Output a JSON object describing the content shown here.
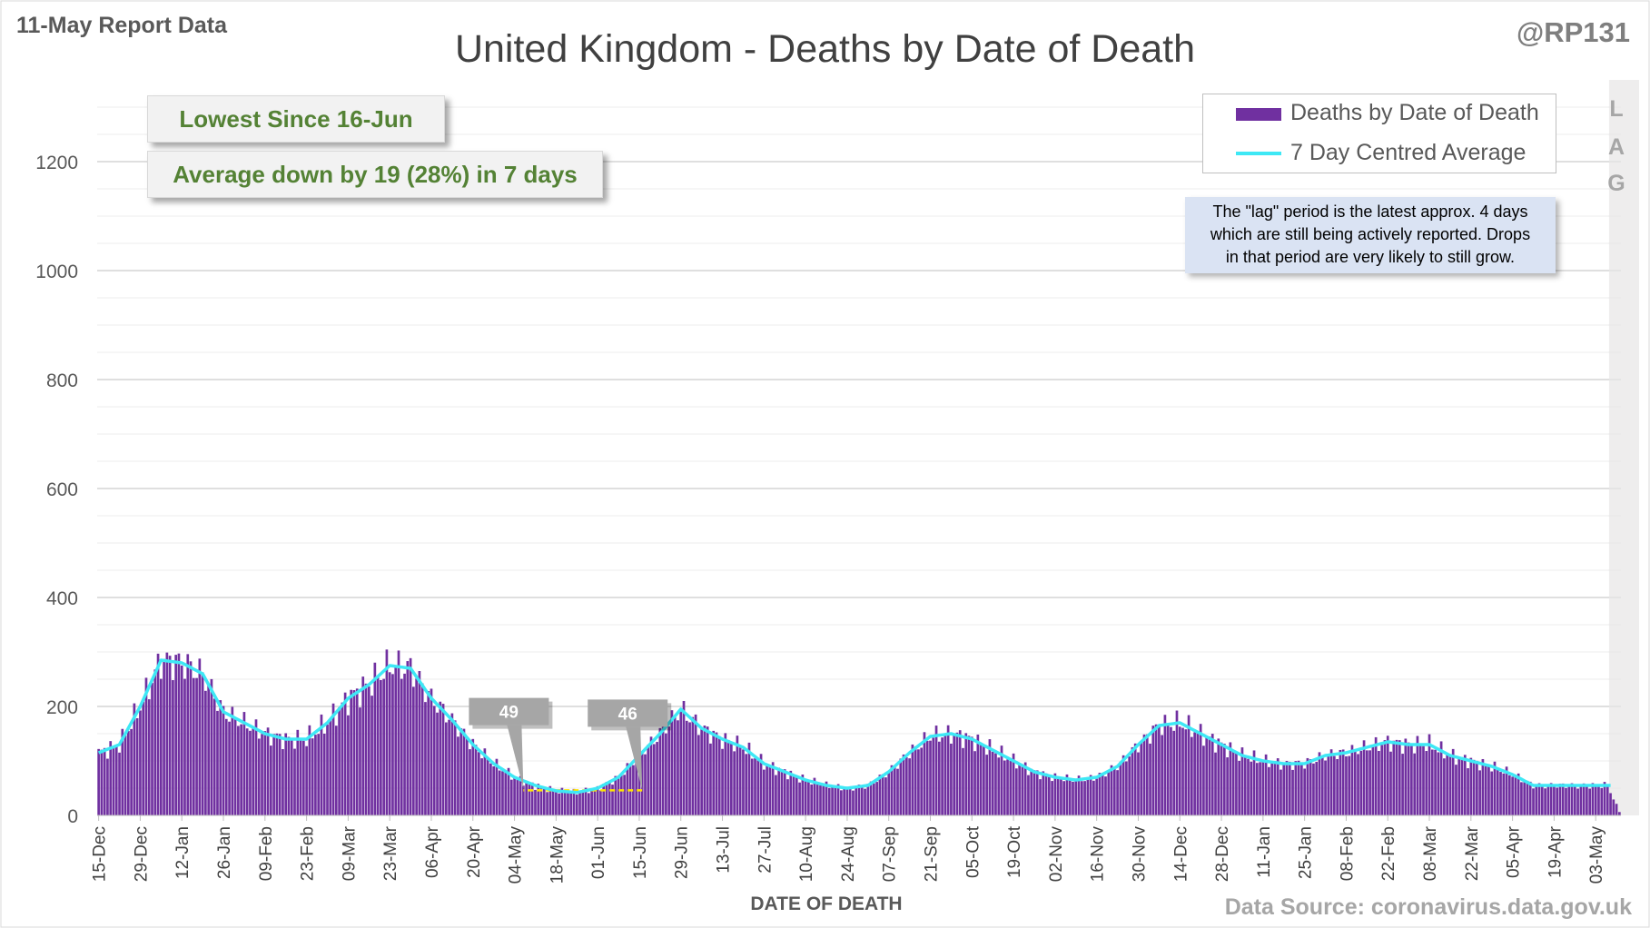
{
  "header": {
    "report_date": "11-May Report Data",
    "author": "@RP131"
  },
  "callouts": {
    "lowest": "Lowest Since 16-Jun",
    "average_change": "Average down by 19 (28%) in 7 days"
  },
  "legend": {
    "bars": "Deaths by Date of Death",
    "line": "7 Day Centred Average"
  },
  "lag": {
    "letters": [
      "L",
      "A",
      "G"
    ],
    "note_lines": [
      "The \"lag\" period is the latest approx. 4 days",
      "which are still being actively reported.  Drops",
      "in that period are very likely to still grow."
    ]
  },
  "footer": {
    "source": "Data Source: coronavirus.data.gov.uk"
  },
  "colors": {
    "bars": "#7030a0",
    "average_line": "#3ee8f5",
    "baseline": "#ffe600",
    "grid": "#d9d9d9",
    "marker": "#a6a6a6"
  },
  "chart_data": {
    "type": "bar",
    "title": "United Kingdom - Deaths by Date of Death",
    "xlabel": "DATE OF DEATH",
    "ylabel": "",
    "ylim": [
      0,
      1300
    ],
    "yticks": [
      0,
      200,
      400,
      600,
      800,
      1000,
      1200
    ],
    "grid": true,
    "legend_position": "top-right",
    "x_start": "15-Dec",
    "x_end": "11-May",
    "xtick_labels": [
      "15-Dec",
      "29-Dec",
      "12-Jan",
      "26-Jan",
      "09-Feb",
      "23-Feb",
      "09-Mar",
      "23-Mar",
      "06-Apr",
      "20-Apr",
      "04-May",
      "18-May",
      "01-Jun",
      "15-Jun",
      "29-Jun",
      "13-Jul",
      "27-Jul",
      "10-Aug",
      "24-Aug",
      "07-Sep",
      "21-Sep",
      "05-Oct",
      "19-Oct",
      "02-Nov",
      "16-Nov",
      "30-Nov",
      "14-Dec",
      "28-Dec",
      "11-Jan",
      "25-Jan",
      "08-Feb",
      "22-Feb",
      "08-Mar",
      "22-Mar",
      "05-Apr",
      "19-Apr",
      "03-May"
    ],
    "series": [
      {
        "name": "7 Day Centred Average",
        "kind": "line",
        "note": "approximate average level every 7 days starting 15-Dec",
        "values": [
          115,
          130,
          200,
          285,
          280,
          260,
          190,
          170,
          150,
          140,
          140,
          170,
          215,
          240,
          275,
          270,
          215,
          175,
          130,
          95,
          70,
          55,
          45,
          42,
          50,
          70,
          110,
          150,
          195,
          160,
          140,
          125,
          95,
          80,
          65,
          55,
          50,
          55,
          80,
          115,
          145,
          150,
          140,
          120,
          100,
          80,
          70,
          65,
          70,
          90,
          130,
          165,
          170,
          150,
          130,
          110,
          100,
          95,
          95,
          110,
          115,
          125,
          135,
          130,
          130,
          110,
          100,
          90,
          75,
          55
        ]
      }
    ],
    "markers": [
      {
        "label": "46",
        "date": "16-Jun",
        "value": 46
      },
      {
        "label": "49",
        "date": "07-May",
        "value": 49
      }
    ],
    "baseline_value": 46,
    "lag_days": 4
  }
}
